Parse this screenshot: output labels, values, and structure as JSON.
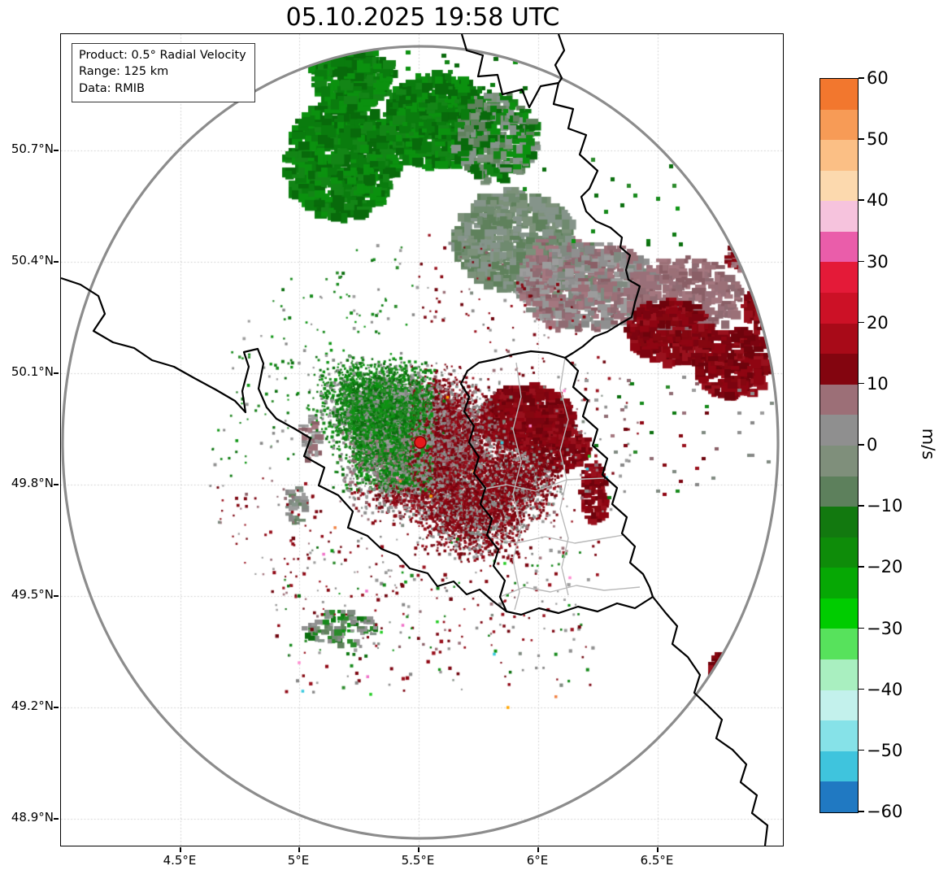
{
  "title": "05.10.2025 19:58 UTC",
  "info_box": {
    "product": "Product: 0.5° Radial Velocity",
    "range": "Range: 125 km",
    "data_source": "Data: RMIB"
  },
  "axes": {
    "x_tick_labels": [
      "4.5°E",
      "5°E",
      "5.5°E",
      "6°E",
      "6.5°E"
    ],
    "y_tick_labels": [
      "50.7°N",
      "50.4°N",
      "50.1°N",
      "49.8°N",
      "49.5°N",
      "49.2°N",
      "48.9°N"
    ]
  },
  "colorbar": {
    "unit": "m/s",
    "tick_labels": [
      "60",
      "50",
      "40",
      "30",
      "20",
      "10",
      "0",
      "−10",
      "−20",
      "−30",
      "−40",
      "−50",
      "−60"
    ],
    "bands_top_to_bottom": [
      "#f2772e",
      "#f79b56",
      "#fbbf85",
      "#fcd9ae",
      "#f6c3dd",
      "#ea5daa",
      "#e41a38",
      "#cc1126",
      "#a80a18",
      "#83050f",
      "#9c6f77",
      "#8f8f8f",
      "#7f8f7b",
      "#5d805c",
      "#12790f",
      "#0e8c09",
      "#06a804",
      "#00cc00",
      "#57e25c",
      "#a9efc0",
      "#c3f1ec",
      "#86e2e8",
      "#3fc4dd",
      "#2079c2"
    ]
  },
  "map": {
    "radar_dot_color": "#e31a1c",
    "range_ring_color": "#8c8c8c",
    "national_border_color": "#000000",
    "regional_border_color": "#b9b9b9",
    "grid_color": "#c9c9c9",
    "echo_palette": {
      "blob_greens": [
        "#0a7c0e",
        "#086a0b",
        "#138516",
        "#0b910f"
      ],
      "approaching_greens": [
        "#0c7a10",
        "#0a6e0d",
        "#15891a",
        "#0d9412",
        "#2a8a2a"
      ],
      "sage_greens": [
        "#6f8a6f",
        "#7c917a",
        "#5f815c",
        "#85948a"
      ],
      "near_zero_grays": [
        "#8f8f8f",
        "#969696",
        "#7f8a80",
        "#9c9c9c",
        "#878787"
      ],
      "near_zero_mauves": [
        "#9b7077",
        "#8f6b72",
        "#a4777f",
        "#8a5f66",
        "#997079"
      ],
      "receding_reds": [
        "#7c0410",
        "#8f0512",
        "#6e030c",
        "#99111d",
        "#850710"
      ],
      "noise_specks": [
        "#35c8de",
        "#f08040",
        "#f070c8",
        "#22cc22",
        "#ff8ad0",
        "#ffa500"
      ]
    }
  }
}
